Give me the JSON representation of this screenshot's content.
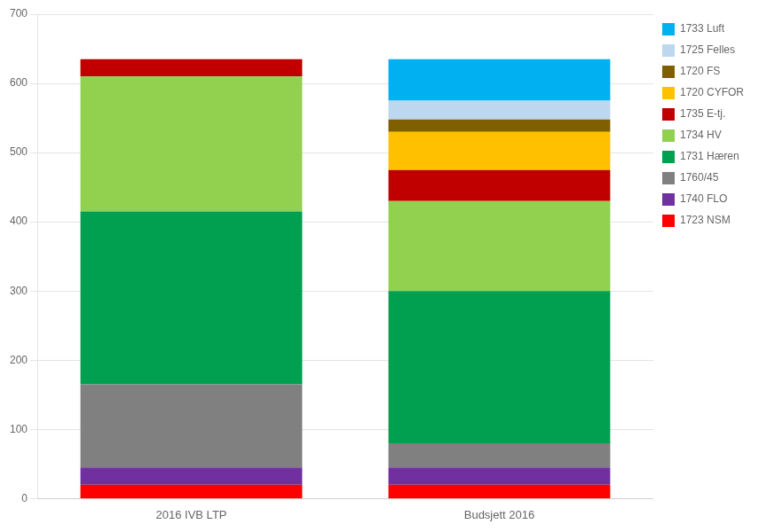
{
  "chart_data": {
    "type": "bar",
    "stacked": true,
    "categories": [
      "2016 IVB LTP",
      "Budsjett 2016"
    ],
    "series": [
      {
        "name": "1723 NSM",
        "color": "#FF0000",
        "values": [
          20,
          20
        ]
      },
      {
        "name": "1740 FLO",
        "color": "#7030A0",
        "values": [
          25,
          25
        ]
      },
      {
        "name": "1760/45",
        "color": "#808080",
        "values": [
          120,
          35
        ]
      },
      {
        "name": "1731 Hæren",
        "color": "#00A050",
        "values": [
          250,
          220
        ]
      },
      {
        "name": "1734 HV",
        "color": "#92D050",
        "values": [
          195,
          130
        ]
      },
      {
        "name": "1735 E-tj.",
        "color": "#C00000",
        "values": [
          25,
          45
        ]
      },
      {
        "name": "1720 CYFOR",
        "color": "#FFC000",
        "values": [
          0,
          55
        ]
      },
      {
        "name": "1720 FS",
        "color": "#7F6000",
        "values": [
          0,
          18
        ]
      },
      {
        "name": "1725 Felles",
        "color": "#BDD7EE",
        "values": [
          0,
          27
        ]
      },
      {
        "name": "1733 Luft",
        "color": "#00B0F0",
        "values": [
          0,
          60
        ]
      }
    ],
    "ylim": [
      0,
      700
    ],
    "yticks": [
      0,
      100,
      200,
      300,
      400,
      500,
      600,
      700
    ],
    "grid": "y",
    "legend": "right"
  }
}
